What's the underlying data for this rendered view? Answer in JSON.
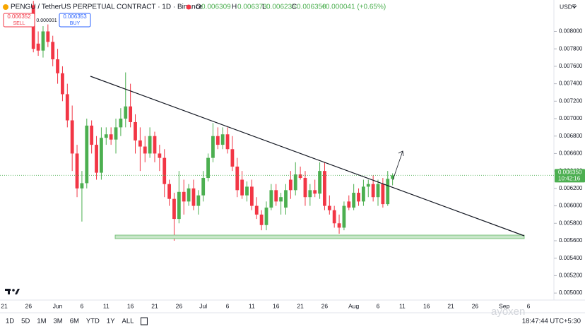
{
  "header": {
    "symbol": "PENGU / TetherUS PERPETUAL CONTRACT · 1D · Binance",
    "o_label": "O",
    "o_value": "0.006309",
    "h_label": "H",
    "h_value": "0.006373",
    "l_label": "L",
    "l_value": "0.006235",
    "c_label": "C",
    "c_value": "0.006350",
    "change": "+0.000041 (+0.65%)",
    "sell_price": "0.006352",
    "sell_label": "SELL",
    "spread": "0.000001",
    "buy_price": "0.006353",
    "buy_label": "BUY",
    "currency": "USDT",
    "price_tag": "0.006350",
    "countdown": "10:42:16"
  },
  "toolbar": {
    "ranges": [
      "1D",
      "5D",
      "1M",
      "3M",
      "6M",
      "YTD",
      "1Y",
      "ALL"
    ],
    "clock": "18:47:44 UTC+5:30",
    "watermark": "ayoxen"
  },
  "chart_data": {
    "type": "candlestick",
    "up_color": "#4caf50",
    "down_color": "#f23645",
    "ylim": [
      0.00492,
      0.00836
    ],
    "yticks": [
      {
        "value": 0.005,
        "label": "0.005000"
      },
      {
        "value": 0.0052,
        "label": "0.005200"
      },
      {
        "value": 0.0054,
        "label": "0.005400"
      },
      {
        "value": 0.0056,
        "label": "0.005600"
      },
      {
        "value": 0.0058,
        "label": "0.005800"
      },
      {
        "value": 0.006,
        "label": "0.006000"
      },
      {
        "value": 0.0062,
        "label": "0.006200"
      },
      {
        "value": 0.0064,
        "label": "0.006400"
      },
      {
        "value": 0.0066,
        "label": "0.006600"
      },
      {
        "value": 0.0068,
        "label": "0.006800"
      },
      {
        "value": 0.007,
        "label": "0.007000"
      },
      {
        "value": 0.0072,
        "label": "0.007200"
      },
      {
        "value": 0.0074,
        "label": "0.007400"
      },
      {
        "value": 0.0076,
        "label": "0.007600"
      },
      {
        "value": 0.0078,
        "label": "0.007800"
      },
      {
        "value": 0.008,
        "label": "0.008000"
      }
    ],
    "grid": false,
    "categories": [
      "21",
      null,
      null,
      null,
      null,
      "26",
      null,
      null,
      null,
      null,
      null,
      "Jun",
      null,
      null,
      null,
      null,
      "6",
      null,
      null,
      null,
      null,
      "11",
      null,
      null,
      null,
      null,
      "16",
      null,
      null,
      null,
      null,
      "21",
      null,
      null,
      null,
      null,
      "26",
      null,
      null,
      null,
      null,
      "Jul",
      null,
      null,
      null,
      null,
      "6",
      null,
      null,
      null,
      null,
      "11",
      null,
      null,
      null,
      null,
      "16",
      null,
      null,
      null,
      null,
      "21",
      null,
      null,
      null,
      null,
      "26",
      null,
      null,
      null,
      null,
      null,
      "Aug",
      null,
      null,
      null,
      null,
      "6",
      null,
      null,
      null,
      null,
      "11",
      null,
      null,
      null,
      null,
      "16",
      null,
      null,
      null,
      null,
      "21",
      null,
      null,
      null,
      null,
      "26",
      null,
      null,
      null,
      null,
      null,
      "Sep",
      null,
      null,
      null,
      null,
      "6"
    ],
    "open": [
      null,
      null,
      null,
      null,
      null,
      null,
      0.0083,
      0.00786,
      0.00778,
      0.008,
      0.00788,
      0.00768,
      0.00752,
      0.00728,
      0.00698,
      0.0066,
      0.0062,
      0.00626,
      0.00692,
      0.0067,
      0.00638,
      0.00678,
      0.00682,
      0.00676,
      0.0069,
      0.007,
      0.00714,
      0.00696,
      0.00675,
      0.00668,
      0.0066,
      0.0068,
      0.0066,
      0.00655,
      0.00625,
      0.00608,
      0.00585,
      0.00616,
      0.00605,
      0.0062,
      0.006,
      0.00612,
      0.00632,
      0.00655,
      0.0068,
      0.0067,
      0.00682,
      0.00665,
      0.00645,
      0.0063,
      0.00612,
      0.00622,
      0.006,
      0.0059,
      0.00578,
      0.00598,
      0.00618,
      0.00605,
      0.00598,
      0.0063,
      0.00618,
      0.00636,
      0.00632,
      0.0061,
      0.00618,
      0.00614,
      0.0064,
      0.006,
      0.00595,
      0.0058,
      0.00575,
      0.00605,
      0.00598,
      0.00615,
      0.00605,
      0.00622,
      0.00625,
      0.0061,
      0.00625,
      0.00602,
      0.006309,
      null,
      null,
      null,
      null,
      null,
      null,
      null,
      null,
      null,
      null,
      null,
      null,
      null,
      null,
      null,
      null,
      null,
      null,
      null,
      null,
      null,
      null,
      null,
      null,
      null,
      null,
      null,
      null
    ],
    "high": [
      null,
      null,
      null,
      null,
      null,
      null,
      0.00835,
      0.008,
      0.00806,
      0.00808,
      0.00795,
      0.0078,
      0.0076,
      0.0074,
      0.00715,
      0.0067,
      0.0064,
      0.007,
      0.00698,
      0.0068,
      0.0069,
      0.0069,
      0.0069,
      0.007,
      0.00712,
      0.00753,
      0.0074,
      0.00705,
      0.0069,
      0.0068,
      0.0069,
      0.00685,
      0.0067,
      0.00665,
      0.0063,
      0.00615,
      0.0064,
      0.0063,
      0.00625,
      0.0063,
      0.00618,
      0.0064,
      0.0066,
      0.00695,
      0.0069,
      0.0069,
      0.0069,
      0.0068,
      0.00655,
      0.0064,
      0.00628,
      0.0063,
      0.0061,
      0.00595,
      0.00605,
      0.00625,
      0.00625,
      0.00615,
      0.00625,
      0.0064,
      0.0065,
      0.00645,
      0.0064,
      0.00625,
      0.0063,
      0.0065,
      0.0065,
      0.00612,
      0.006,
      0.0059,
      0.00605,
      0.00612,
      0.00625,
      0.0062,
      0.0063,
      0.0063,
      0.00635,
      0.0063,
      0.00632,
      0.0064,
      0.006373,
      null,
      null,
      null,
      null,
      null,
      null,
      null,
      null,
      null,
      null,
      null,
      null,
      null,
      null,
      null,
      null,
      null,
      null,
      null,
      null,
      null,
      null,
      null,
      null,
      null,
      null,
      null,
      null
    ],
    "low": [
      null,
      null,
      null,
      null,
      null,
      null,
      0.00776,
      0.00772,
      0.0077,
      0.00782,
      0.0076,
      0.0074,
      0.0072,
      0.0069,
      0.0064,
      0.0061,
      0.00582,
      0.0062,
      0.0066,
      0.0063,
      0.0063,
      0.0067,
      0.0067,
      0.0066,
      0.0068,
      0.0069,
      0.0069,
      0.0066,
      0.0064,
      0.0065,
      0.00655,
      0.0065,
      0.0064,
      0.0061,
      0.006,
      0.0056,
      0.0058,
      0.0059,
      0.006,
      0.00595,
      0.0059,
      0.00605,
      0.00628,
      0.0065,
      0.00665,
      0.00665,
      0.0066,
      0.0064,
      0.0061,
      0.00608,
      0.00605,
      0.00595,
      0.00585,
      0.00572,
      0.00572,
      0.00595,
      0.006,
      0.0059,
      0.0059,
      0.00608,
      0.00612,
      0.0063,
      0.006,
      0.006,
      0.0061,
      0.00608,
      0.00595,
      0.0059,
      0.00575,
      0.00568,
      0.00572,
      0.00595,
      0.00595,
      0.006,
      0.006,
      0.0061,
      0.00605,
      0.006,
      0.00598,
      0.006,
      0.006235,
      null,
      null,
      null,
      null,
      null,
      null,
      null,
      null,
      null,
      null,
      null,
      null,
      null,
      null,
      null,
      null,
      null,
      null,
      null,
      null,
      null,
      null,
      null,
      null,
      null,
      null,
      null,
      null
    ],
    "close": [
      null,
      null,
      null,
      null,
      null,
      null,
      0.0078,
      0.00778,
      0.008,
      0.00788,
      0.00768,
      0.00752,
      0.00728,
      0.00698,
      0.0066,
      0.0062,
      0.00626,
      0.00692,
      0.0067,
      0.00638,
      0.00678,
      0.00682,
      0.00676,
      0.0069,
      0.007,
      0.00714,
      0.00696,
      0.00675,
      0.00668,
      0.0066,
      0.0068,
      0.0066,
      0.00655,
      0.00625,
      0.00608,
      0.00585,
      0.00616,
      0.00605,
      0.0062,
      0.006,
      0.00612,
      0.00632,
      0.00655,
      0.0068,
      0.0067,
      0.00682,
      0.00665,
      0.00645,
      0.00618,
      0.00612,
      0.00622,
      0.006,
      0.0059,
      0.00578,
      0.00598,
      0.00618,
      0.00605,
      0.0061,
      0.00618,
      0.00618,
      0.00636,
      0.00632,
      0.0061,
      0.00618,
      0.00614,
      0.0064,
      0.006,
      0.00595,
      0.0058,
      0.00575,
      0.006,
      0.00598,
      0.00615,
      0.00605,
      0.00622,
      0.00625,
      0.0061,
      0.00625,
      0.00602,
      0.00631,
      0.00635,
      null,
      null,
      null,
      null,
      null,
      null,
      null,
      null,
      null,
      null,
      null,
      null,
      null,
      null,
      null,
      null,
      null,
      null,
      null,
      null,
      null,
      null,
      null,
      null,
      null,
      null,
      null,
      null
    ]
  }
}
